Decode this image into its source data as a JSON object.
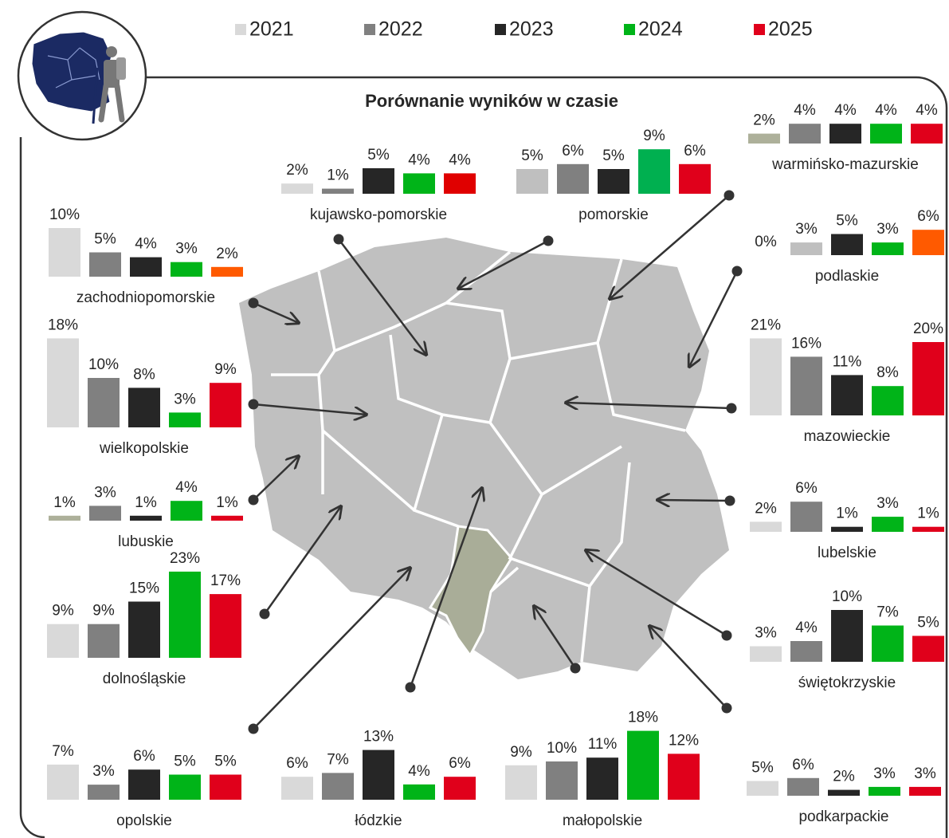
{
  "title": "Porównanie wyników w czasie",
  "legend": [
    {
      "name": "2021",
      "color": "#d9d9d9"
    },
    {
      "name": "2022",
      "color": "#808080"
    },
    {
      "name": "2023",
      "color": "#262626"
    },
    {
      "name": "2024",
      "color": "#00b418"
    },
    {
      "name": "2025",
      "color": "#e0001b"
    }
  ],
  "chart_data": [
    {
      "type": "bar",
      "title": "kujawsko-pomorskie",
      "values": [
        2,
        1,
        5,
        4,
        4
      ],
      "value_labels": [
        "2%",
        "1%",
        "5%",
        "4%",
        "4%"
      ],
      "colors": [
        "#d9d9d9",
        "#808080",
        "#262626",
        "#00b418",
        "#e00000"
      ]
    },
    {
      "type": "bar",
      "title": "pomorskie",
      "values": [
        5,
        6,
        5,
        9,
        6
      ],
      "value_labels": [
        "5%",
        "6%",
        "5%",
        "9%",
        "6%"
      ],
      "colors": [
        "#bfbfbf",
        "#808080",
        "#262626",
        "#00b050",
        "#e0001b"
      ]
    },
    {
      "type": "bar",
      "title": "warmińsko-mazurskie",
      "values": [
        2,
        4,
        4,
        4,
        4
      ],
      "value_labels": [
        "2%",
        "4%",
        "4%",
        "4%",
        "4%"
      ],
      "colors": [
        "#adb09a",
        "#808080",
        "#262626",
        "#00b418",
        "#e0001b"
      ]
    },
    {
      "type": "bar",
      "title": "zachodniopomorskie",
      "values": [
        10,
        5,
        4,
        3,
        2
      ],
      "value_labels": [
        "10%",
        "5%",
        "4%",
        "3%",
        "2%"
      ],
      "colors": [
        "#d9d9d9",
        "#808080",
        "#262626",
        "#00b418",
        "#ff5a00"
      ]
    },
    {
      "type": "bar",
      "title": "podlaskie",
      "values": [
        0,
        3,
        5,
        3,
        6
      ],
      "value_labels": [
        "0%",
        "3%",
        "5%",
        "3%",
        "6%"
      ],
      "colors": [
        "#d9d9d9",
        "#bfbfbf",
        "#262626",
        "#00b418",
        "#ff5a00"
      ]
    },
    {
      "type": "bar",
      "title": "wielkopolskie",
      "values": [
        18,
        10,
        8,
        3,
        9
      ],
      "value_labels": [
        "18%",
        "10%",
        "8%",
        "3%",
        "9%"
      ],
      "colors": [
        "#d9d9d9",
        "#808080",
        "#262626",
        "#00b418",
        "#e0001b"
      ]
    },
    {
      "type": "bar",
      "title": "mazowieckie",
      "values": [
        21,
        16,
        11,
        8,
        20
      ],
      "value_labels": [
        "21%",
        "16%",
        "11%",
        "8%",
        "20%"
      ],
      "colors": [
        "#d9d9d9",
        "#808080",
        "#262626",
        "#00b418",
        "#e0001b"
      ]
    },
    {
      "type": "bar",
      "title": "lubuskie",
      "values": [
        1,
        3,
        1,
        4,
        1
      ],
      "value_labels": [
        "1%",
        "3%",
        "1%",
        "4%",
        "1%"
      ],
      "colors": [
        "#adb09a",
        "#808080",
        "#262626",
        "#00b418",
        "#e0001b"
      ]
    },
    {
      "type": "bar",
      "title": "lubelskie",
      "values": [
        2,
        6,
        1,
        3,
        1
      ],
      "value_labels": [
        "2%",
        "6%",
        "1%",
        "3%",
        "1%"
      ],
      "colors": [
        "#d9d9d9",
        "#808080",
        "#262626",
        "#00b418",
        "#e0001b"
      ]
    },
    {
      "type": "bar",
      "title": "dolnośląskie",
      "values": [
        9,
        9,
        15,
        23,
        17
      ],
      "value_labels": [
        "9%",
        "9%",
        "15%",
        "23%",
        "17%"
      ],
      "colors": [
        "#d9d9d9",
        "#808080",
        "#262626",
        "#00b418",
        "#e0001b"
      ]
    },
    {
      "type": "bar",
      "title": "świętokrzyskie",
      "values": [
        3,
        4,
        10,
        7,
        5
      ],
      "value_labels": [
        "3%",
        "4%",
        "10%",
        "7%",
        "5%"
      ],
      "colors": [
        "#d9d9d9",
        "#808080",
        "#262626",
        "#00b418",
        "#e0001b"
      ]
    },
    {
      "type": "bar",
      "title": "opolskie",
      "values": [
        7,
        3,
        6,
        5,
        5
      ],
      "value_labels": [
        "7%",
        "3%",
        "6%",
        "5%",
        "5%"
      ],
      "colors": [
        "#d9d9d9",
        "#808080",
        "#262626",
        "#00b418",
        "#e0001b"
      ]
    },
    {
      "type": "bar",
      "title": "łódzkie",
      "values": [
        6,
        7,
        13,
        4,
        6
      ],
      "value_labels": [
        "6%",
        "7%",
        "13%",
        "4%",
        "6%"
      ],
      "colors": [
        "#d9d9d9",
        "#808080",
        "#262626",
        "#00b418",
        "#e0001b"
      ]
    },
    {
      "type": "bar",
      "title": "małopolskie",
      "values": [
        9,
        10,
        11,
        18,
        12
      ],
      "value_labels": [
        "9%",
        "10%",
        "11%",
        "18%",
        "12%"
      ],
      "colors": [
        "#d9d9d9",
        "#808080",
        "#262626",
        "#00b418",
        "#e0001b"
      ]
    },
    {
      "type": "bar",
      "title": "podkarpackie",
      "values": [
        5,
        6,
        2,
        3,
        3
      ],
      "value_labels": [
        "5%",
        "6%",
        "2%",
        "3%",
        "3%"
      ],
      "colors": [
        "#d9d9d9",
        "#808080",
        "#262626",
        "#00b418",
        "#e0001b"
      ]
    }
  ]
}
